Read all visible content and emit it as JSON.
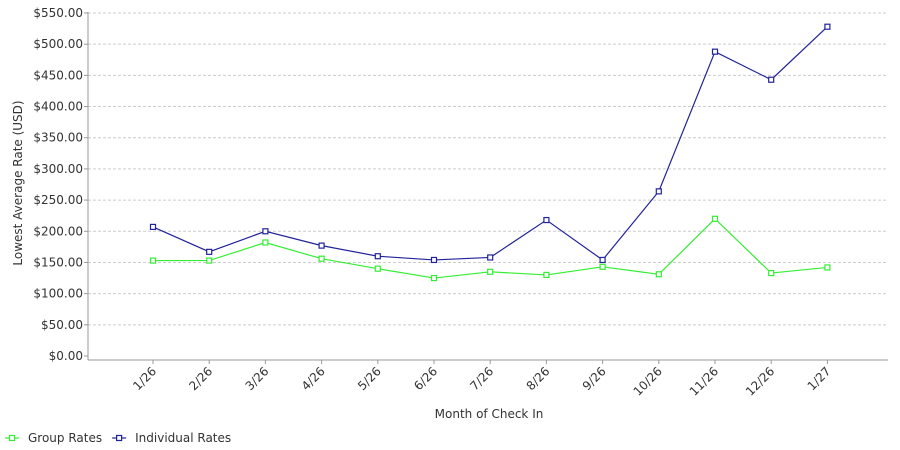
{
  "chart_data": {
    "type": "line",
    "xlabel": "Month of Check In",
    "ylabel": "Lowest Average Rate (USD)",
    "categories": [
      "1/26",
      "2/26",
      "3/26",
      "4/26",
      "5/26",
      "6/26",
      "7/26",
      "8/26",
      "9/26",
      "10/26",
      "11/26",
      "12/26",
      "1/27"
    ],
    "ylim": [
      0,
      550
    ],
    "ytick_step": 50,
    "ytick_labels": [
      "$0.00",
      "$50.00",
      "$100.00",
      "$150.00",
      "$200.00",
      "$250.00",
      "$300.00",
      "$350.00",
      "$400.00",
      "$450.00",
      "$500.00",
      "$550.00"
    ],
    "grid": true,
    "legend_position": "bottom-left",
    "series": [
      {
        "name": "Group Rates",
        "color": "#33ee33",
        "values": [
          153,
          153,
          182,
          156,
          140,
          125,
          135,
          130,
          143,
          131,
          220,
          133,
          142
        ]
      },
      {
        "name": "Individual Rates",
        "color": "#222299",
        "values": [
          207,
          167,
          200,
          177,
          160,
          154,
          158,
          218,
          154,
          264,
          488,
          443,
          528
        ]
      }
    ]
  }
}
